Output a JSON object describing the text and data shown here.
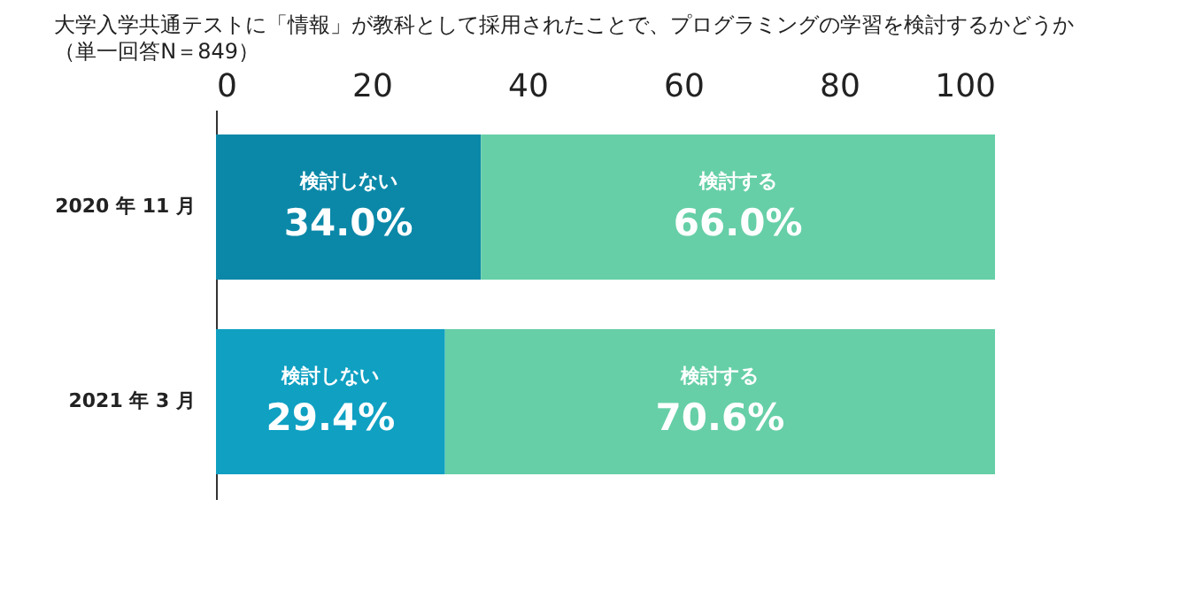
{
  "chart_data": {
    "type": "bar",
    "orientation": "horizontal",
    "stacked": true,
    "title": "大学入学共通テストに「情報」が教科として採用されたことで、プログラミングの学習を検討するかどうか",
    "subtitle": "（単一回答N＝849）",
    "categories": [
      "2020 年 11 月",
      "2021 年 3 月"
    ],
    "series": [
      {
        "name": "検討しない",
        "colors": [
          "#0b88a8",
          "#0fa0c2"
        ],
        "values": [
          34.0,
          29.4
        ],
        "value_labels": [
          "34.0%",
          "29.4%"
        ]
      },
      {
        "name": "検討する",
        "color": "#66cfa7",
        "values": [
          66.0,
          70.6
        ],
        "value_labels": [
          "66.0%",
          "70.6%"
        ]
      }
    ],
    "xlim": [
      0,
      100
    ],
    "xticks": [
      0,
      20,
      40,
      60,
      80,
      100
    ],
    "grid": false
  }
}
